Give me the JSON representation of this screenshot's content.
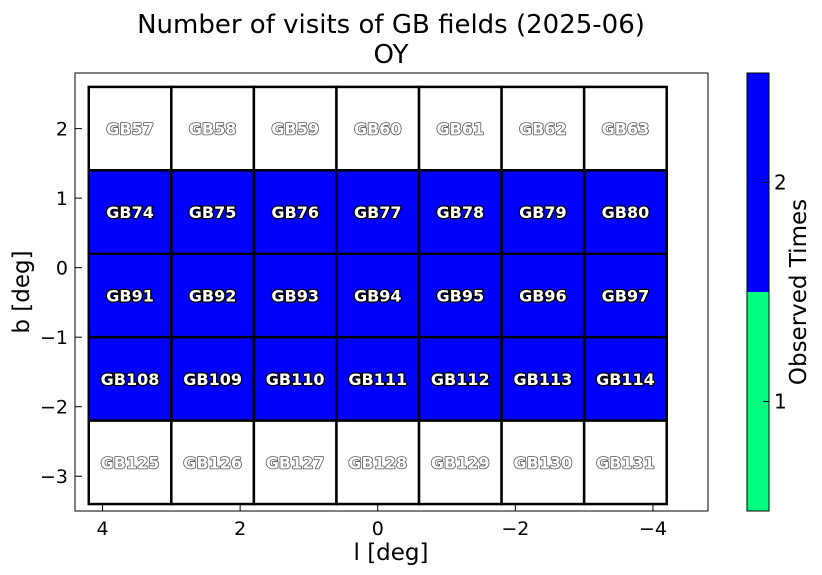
{
  "chart_data": {
    "type": "heatmap",
    "title": "Number of visits of GB fields (2025-06)",
    "subtitle": "OY",
    "xlabel": "l [deg]",
    "ylabel": "b [deg]",
    "xlim": [
      4.4,
      -4.8
    ],
    "ylim": [
      -3.5,
      2.8
    ],
    "xticks": [
      {
        "value": 4,
        "label": "4"
      },
      {
        "value": 2,
        "label": "2"
      },
      {
        "value": 0,
        "label": "0"
      },
      {
        "value": -2,
        "label": "−2"
      },
      {
        "value": -4,
        "label": "−4"
      }
    ],
    "yticks": [
      {
        "value": 2,
        "label": "2"
      },
      {
        "value": 1,
        "label": "1"
      },
      {
        "value": 0,
        "label": "0"
      },
      {
        "value": -1,
        "label": "−1"
      },
      {
        "value": -2,
        "label": "−2"
      },
      {
        "value": -3,
        "label": "−3"
      }
    ],
    "grid": false,
    "columns_l": [
      3.6,
      2.4,
      1.2,
      0.0,
      -1.2,
      -2.4,
      -3.6
    ],
    "rows": [
      {
        "b": 2.0,
        "fields": [
          "GB57",
          "GB58",
          "GB59",
          "GB60",
          "GB61",
          "GB62",
          "GB63"
        ],
        "visits": [
          0,
          0,
          0,
          0,
          0,
          0,
          0
        ]
      },
      {
        "b": 0.8,
        "fields": [
          "GB74",
          "GB75",
          "GB76",
          "GB77",
          "GB78",
          "GB79",
          "GB80"
        ],
        "visits": [
          2,
          2,
          2,
          2,
          2,
          2,
          2
        ]
      },
      {
        "b": -0.4,
        "fields": [
          "GB91",
          "GB92",
          "GB93",
          "GB94",
          "GB95",
          "GB96",
          "GB97"
        ],
        "visits": [
          2,
          2,
          2,
          2,
          2,
          2,
          2
        ]
      },
      {
        "b": -1.6,
        "fields": [
          "GB108",
          "GB109",
          "GB110",
          "GB111",
          "GB112",
          "GB113",
          "GB114"
        ],
        "visits": [
          2,
          2,
          2,
          2,
          2,
          2,
          2
        ]
      },
      {
        "b": -2.8,
        "fields": [
          "GB125",
          "GB126",
          "GB127",
          "GB128",
          "GB129",
          "GB130",
          "GB131"
        ],
        "visits": [
          0,
          0,
          0,
          0,
          0,
          0,
          0
        ]
      }
    ],
    "colorbar": {
      "label": "Observed Times",
      "range": [
        0.5,
        2.5
      ],
      "levels": [
        {
          "value": 1,
          "label": "1",
          "color": "#00ff7f"
        },
        {
          "value": 2,
          "label": "2",
          "color": "#0000ff"
        }
      ],
      "unvisited_color": "#ffffff"
    }
  }
}
